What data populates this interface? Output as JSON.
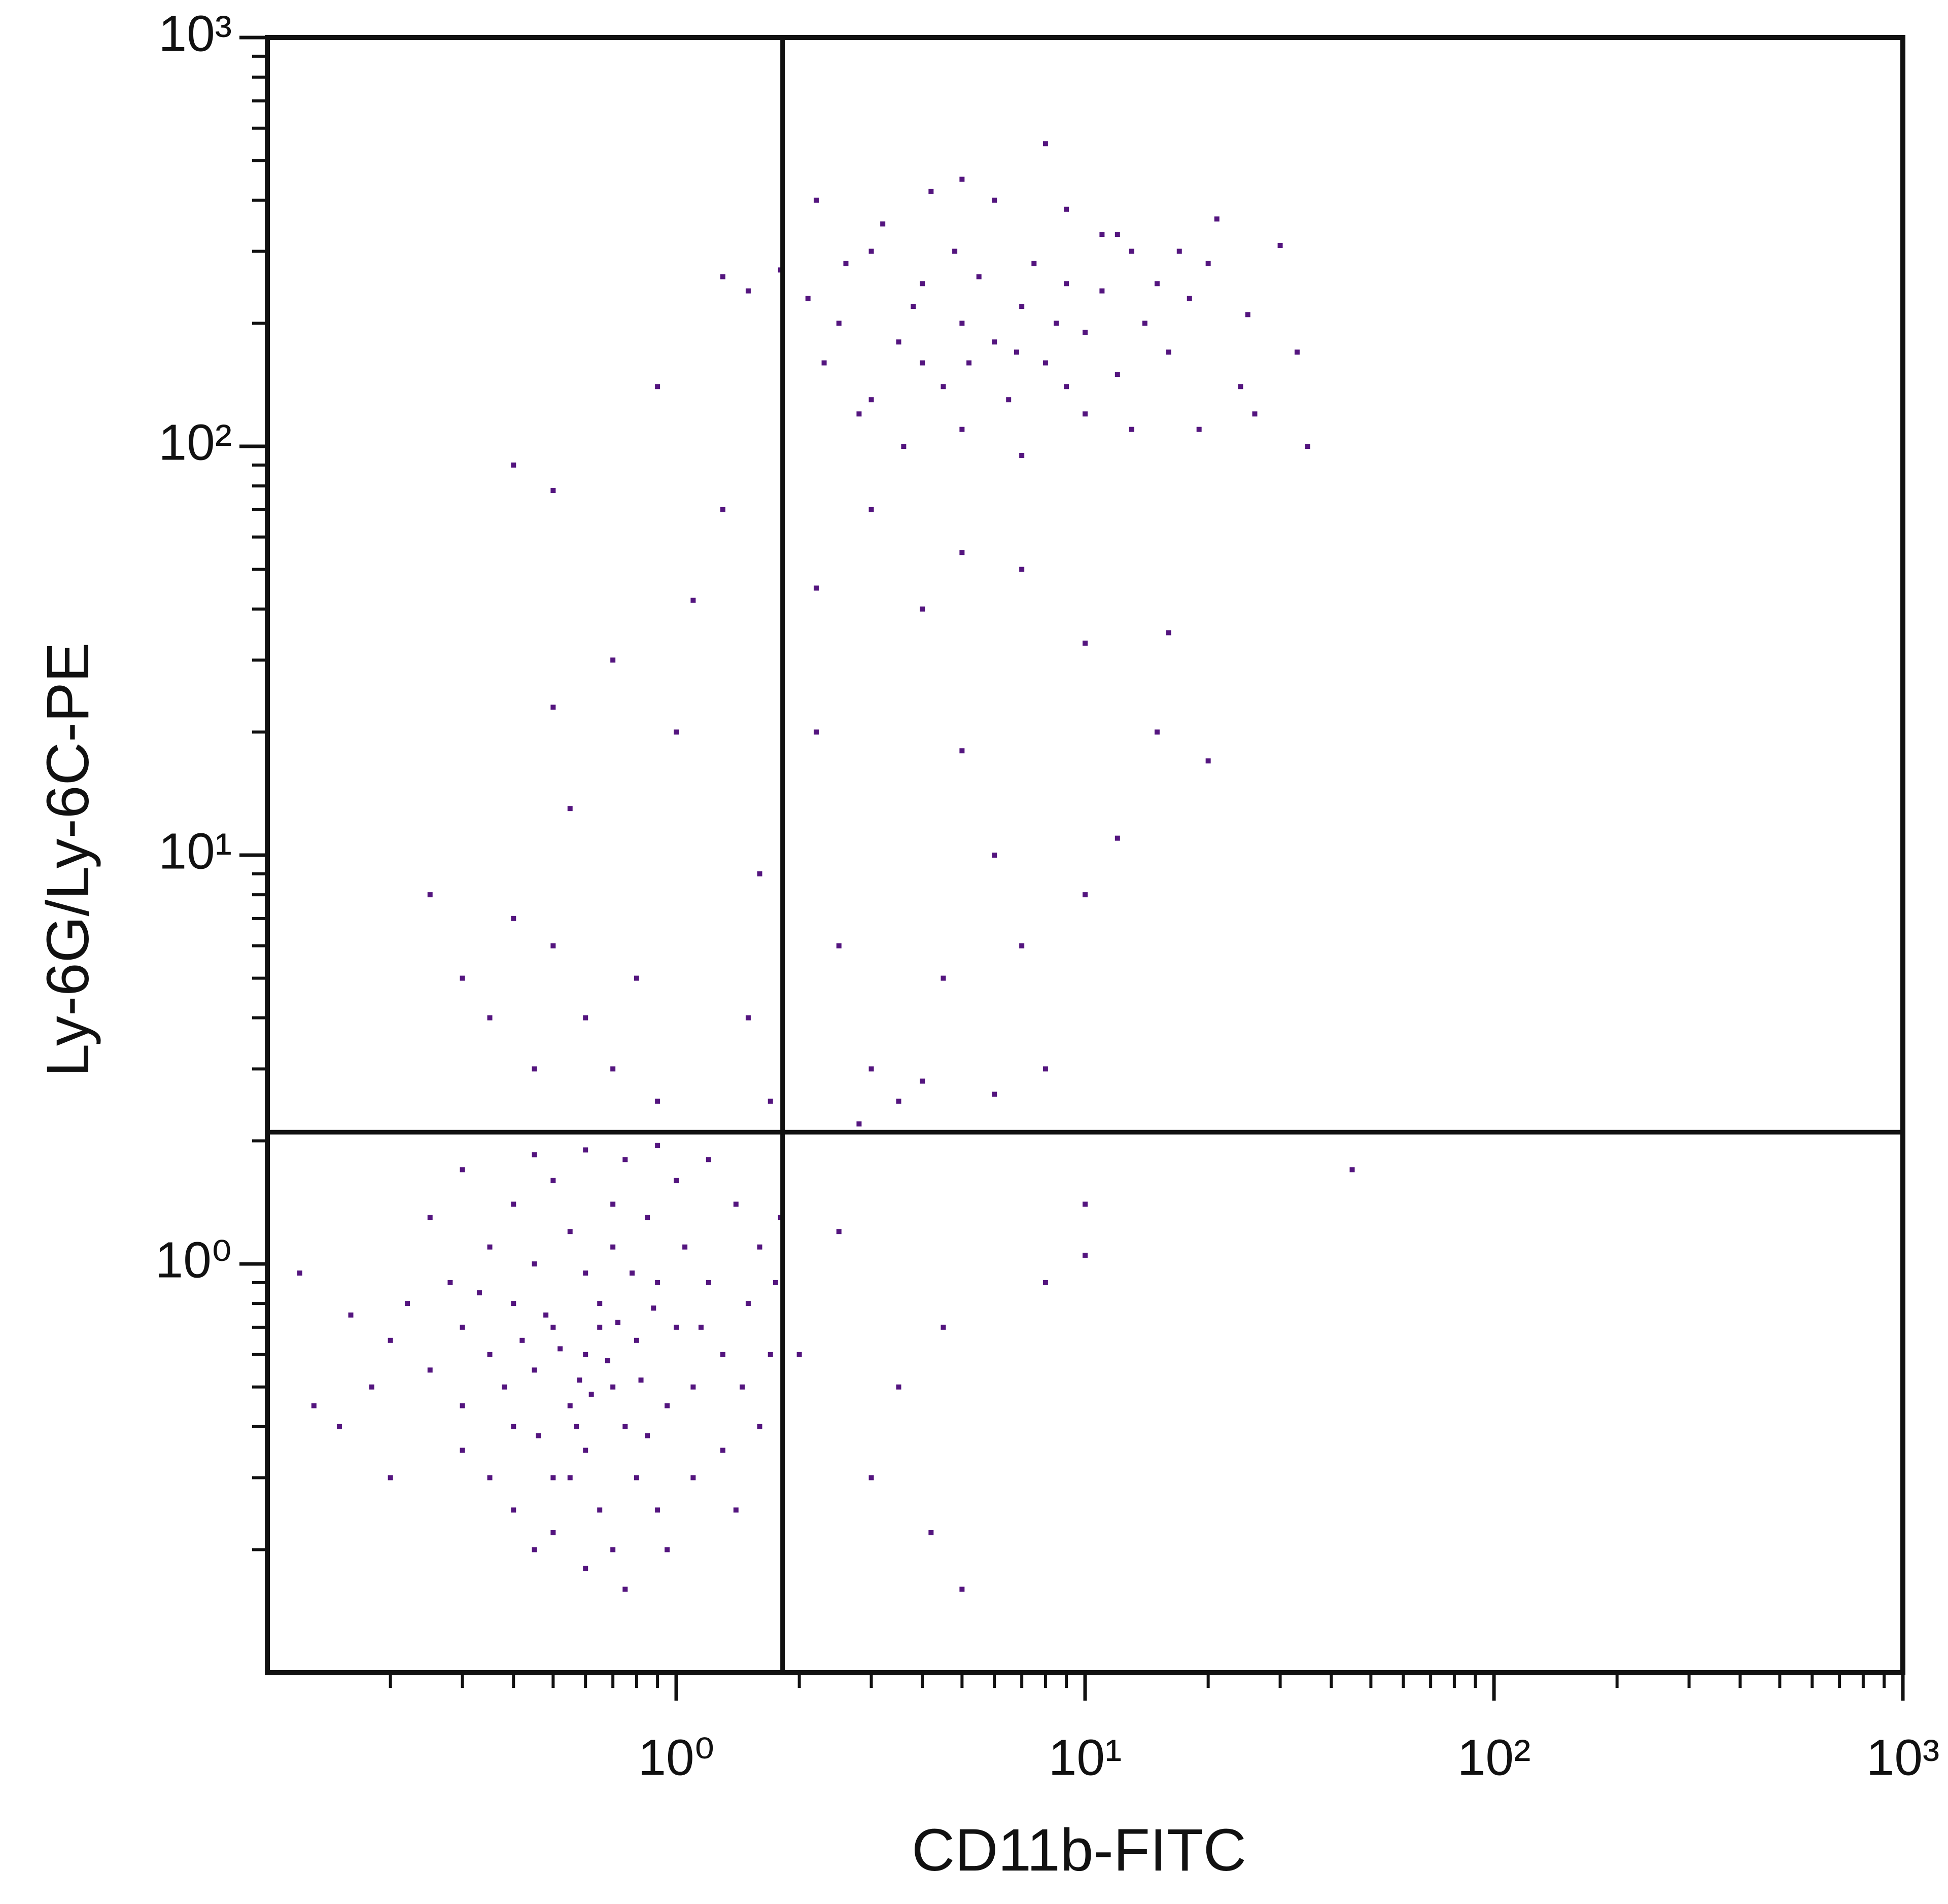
{
  "chart_data": {
    "type": "scatter",
    "x_label": "CD11b-FITC",
    "y_label": "Ly-6G/Ly-6C-PE",
    "log_x": true,
    "log_y": true,
    "minor_ticks": true,
    "color": "#54157f",
    "xlim": [
      0.1,
      1000
    ],
    "ylim": [
      0.1,
      1000
    ],
    "xticks": [
      {
        "value": 1,
        "label": "10⁰"
      },
      {
        "value": 10,
        "label": "10¹"
      },
      {
        "value": 100,
        "label": "10²"
      },
      {
        "value": 1000,
        "label": "10³"
      }
    ],
    "yticks": [
      {
        "value": 1,
        "label": "10⁰"
      },
      {
        "value": 10,
        "label": "10¹"
      },
      {
        "value": 100,
        "label": "10²"
      },
      {
        "value": 1000,
        "label": "10³"
      }
    ],
    "gate_x": 1.82,
    "gate_y": 2.1,
    "x": [
      0.6,
      0.5,
      0.7,
      0.55,
      0.65,
      0.45,
      0.8,
      0.4,
      0.75,
      0.6,
      0.5,
      0.9,
      0.35,
      0.3,
      0.7,
      0.55,
      0.45,
      1.0,
      1.1,
      0.95,
      0.85,
      0.4,
      0.3,
      0.25,
      0.28,
      0.65,
      0.5,
      0.7,
      0.8,
      1.2,
      1.3,
      1.5,
      1.6,
      1.4,
      1.0,
      0.75,
      0.5,
      0.4,
      0.35,
      0.22,
      0.18,
      0.15,
      0.12,
      0.13,
      0.2,
      0.35,
      0.45,
      0.6,
      0.75,
      0.9,
      1.1,
      1.3,
      1.6,
      1.7,
      0.6,
      0.65,
      0.58,
      0.52,
      0.68,
      0.62,
      0.48,
      0.72,
      0.42,
      0.82,
      0.88,
      0.38,
      0.33,
      0.57,
      0.46,
      0.78,
      1.05,
      1.2,
      0.3,
      0.25,
      0.2,
      0.16,
      1.8,
      1.75,
      1.45,
      0.95,
      0.4,
      0.3,
      0.55,
      0.85,
      1.15,
      0.7,
      0.6,
      0.9,
      0.45,
      1.4,
      0.25,
      0.3,
      0.35,
      0.4,
      0.5,
      0.45,
      0.6,
      0.7,
      0.8,
      0.9,
      0.55,
      0.5,
      0.7,
      1.0,
      1.1,
      1.3,
      0.9,
      0.4,
      0.5,
      1.6,
      1.5,
      1.7,
      2.2,
      2.5,
      3,
      3.5,
      4,
      4.5,
      5,
      6,
      7,
      8,
      10,
      12,
      15,
      20,
      10,
      16,
      3,
      4,
      5,
      7,
      2.2,
      2.8,
      6,
      4.5,
      3.5,
      3,
      4.2,
      5,
      8,
      10,
      10,
      2.5,
      2,
      45,
      5,
      4,
      6,
      7,
      8,
      3,
      3.5,
      4.5,
      6.5,
      9,
      10,
      12,
      14,
      16,
      18,
      20,
      25,
      30,
      33,
      24,
      2.2,
      2.5,
      2.8,
      3.2,
      4.2,
      5,
      6,
      8,
      9,
      11,
      13,
      15,
      3.8,
      5.5,
      4.8,
      7.5,
      6.8,
      5.2,
      4,
      8.5,
      10,
      13,
      19,
      26,
      35,
      2.3,
      2.6,
      3,
      3.6,
      5,
      7,
      9,
      11,
      12,
      17,
      21,
      1.8,
      1.5,
      1.3,
      2.1
    ],
    "values": [
      0.6,
      0.7,
      0.5,
      0.45,
      0.8,
      0.55,
      0.65,
      0.8,
      0.4,
      0.35,
      0.3,
      0.9,
      0.6,
      0.7,
      1.1,
      1.2,
      1.0,
      0.7,
      0.5,
      0.45,
      1.3,
      0.4,
      0.45,
      0.55,
      0.9,
      0.25,
      0.22,
      0.2,
      0.3,
      0.9,
      0.6,
      0.8,
      1.1,
      1.4,
      1.6,
      1.8,
      1.6,
      1.4,
      1.1,
      0.8,
      0.5,
      0.4,
      0.95,
      0.45,
      0.3,
      0.3,
      0.2,
      0.18,
      0.16,
      0.25,
      0.3,
      0.35,
      0.4,
      0.6,
      0.95,
      0.7,
      0.52,
      0.62,
      0.58,
      0.48,
      0.75,
      0.72,
      0.65,
      0.52,
      0.78,
      0.5,
      0.85,
      0.4,
      0.38,
      0.95,
      1.1,
      1.8,
      1.7,
      1.3,
      0.65,
      0.75,
      1.3,
      0.9,
      0.5,
      0.2,
      0.25,
      0.35,
      0.3,
      0.38,
      0.7,
      1.4,
      1.9,
      1.95,
      1.85,
      0.25,
      8,
      5,
      4,
      7,
      6,
      3,
      4,
      3,
      5,
      2.5,
      13,
      23,
      30,
      20,
      42,
      70,
      140,
      90,
      78,
      9,
      4,
      2.5,
      20,
      6,
      3,
      2.5,
      2.8,
      5,
      18,
      10,
      6,
      3,
      8,
      11,
      20,
      17,
      33,
      35,
      70,
      40,
      55,
      50,
      45,
      2.2,
      2.6,
      0.7,
      0.5,
      0.3,
      0.22,
      0.16,
      0.9,
      1.05,
      1.4,
      1.2,
      0.6,
      1.7,
      200,
      250,
      180,
      220,
      160,
      300,
      180,
      140,
      130,
      250,
      190,
      150,
      200,
      170,
      230,
      280,
      210,
      310,
      170,
      140,
      400,
      200,
      120,
      350,
      420,
      450,
      400,
      550,
      380,
      330,
      300,
      250,
      220,
      260,
      300,
      280,
      170,
      160,
      160,
      200,
      120,
      110,
      110,
      120,
      100,
      160,
      280,
      130,
      100,
      110,
      95,
      140,
      240,
      330,
      300,
      360,
      270,
      240,
      260,
      230
    ]
  }
}
